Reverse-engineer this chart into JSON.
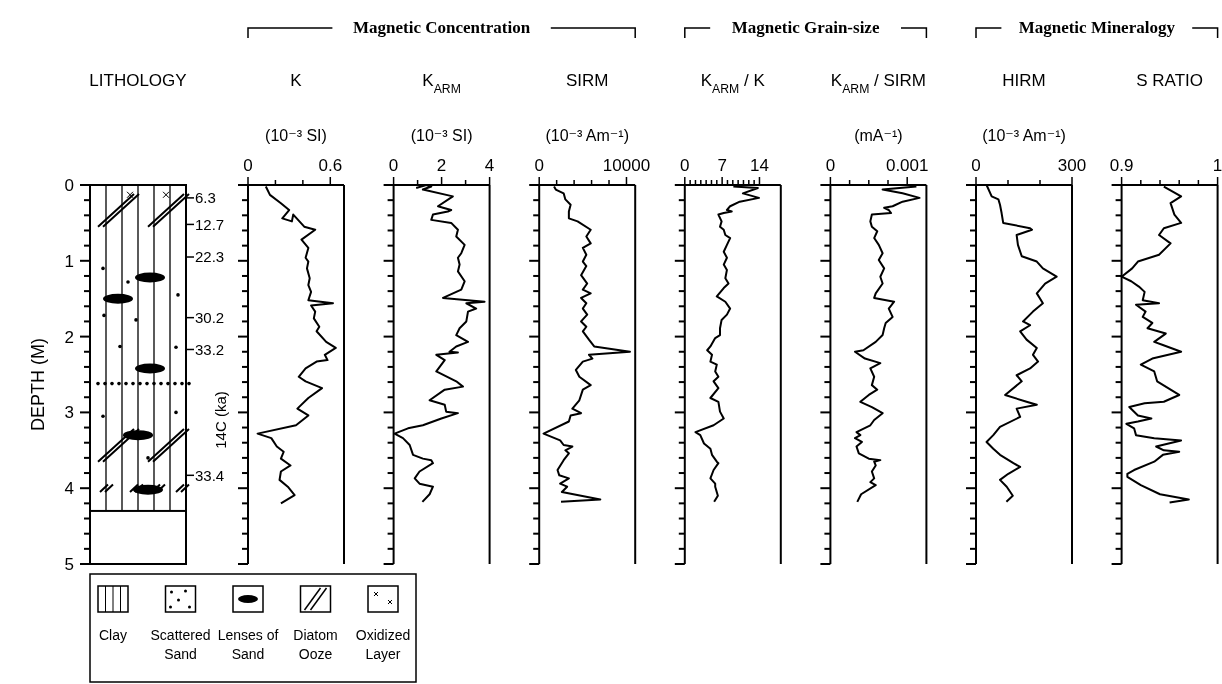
{
  "chart_data": [
    {
      "type": "bar",
      "title": "LITHOLOGY",
      "ylabel": "DEPTH (M)",
      "y2label": "14C (ka)",
      "categories": [
        null
      ],
      "values": [
        4.3
      ],
      "color": "#ffffff",
      "ylim": [
        5,
        0
      ],
      "yticks": [
        0,
        {
          "value": 0.2,
          "label": null
        },
        {
          "value": 0.4,
          "label": null
        },
        {
          "value": 0.6,
          "label": null
        },
        {
          "value": 0.8,
          "label": null
        },
        1,
        {
          "value": 1.2,
          "label": null
        },
        {
          "value": 1.4,
          "label": null
        },
        {
          "value": 1.6,
          "label": null
        },
        {
          "value": 1.8,
          "label": null
        },
        2,
        {
          "value": 2.2,
          "label": null
        },
        {
          "value": 2.4,
          "label": null
        },
        {
          "value": 2.6,
          "label": null
        },
        {
          "value": 2.8,
          "label": null
        },
        3,
        {
          "value": 3.2,
          "label": null
        },
        {
          "value": 3.4,
          "label": null
        },
        {
          "value": 3.6,
          "label": null
        },
        {
          "value": 3.8,
          "label": null
        },
        4,
        {
          "value": 4.2,
          "label": null
        },
        {
          "value": 4.4,
          "label": null
        },
        {
          "value": 4.6,
          "label": null
        },
        {
          "value": 4.8,
          "label": null
        },
        5
      ],
      "annotations": [
        "6.3",
        "12.7",
        "22.3",
        "30.2",
        "33.2",
        "33.4",
        "Clay",
        "Scattered Sand",
        "Lenses of Sand",
        "Diatom Ooze",
        "Oxidized Layer"
      ]
    },
    {
      "type": "line",
      "title": "K",
      "xlabel": "(10⁻³ SI)",
      "annotations": [
        "Magnetic Concentration"
      ],
      "color": "#000000",
      "tick_labels": "x",
      "xlim": [
        0,
        0.7
      ],
      "xticks": [
        0,
        {
          "value": 0.2,
          "label": null
        },
        {
          "value": 0.4,
          "label": null
        },
        0.6
      ],
      "ylim": [
        5,
        0
      ],
      "yticks": [
        0,
        {
          "value": 0.2,
          "label": null
        },
        {
          "value": 0.4,
          "label": null
        },
        {
          "value": 0.6,
          "label": null
        },
        {
          "value": 0.8,
          "label": null
        },
        1,
        {
          "value": 1.2,
          "label": null
        },
        {
          "value": 1.4,
          "label": null
        },
        {
          "value": 1.6,
          "label": null
        },
        {
          "value": 1.8,
          "label": null
        },
        2,
        {
          "value": 2.2,
          "label": null
        },
        {
          "value": 2.4,
          "label": null
        },
        {
          "value": 2.6,
          "label": null
        },
        {
          "value": 2.8,
          "label": null
        },
        3,
        {
          "value": 3.2,
          "label": null
        },
        {
          "value": 3.4,
          "label": null
        },
        {
          "value": 3.6,
          "label": null
        },
        {
          "value": 3.8,
          "label": null
        },
        4,
        {
          "value": 4.2,
          "label": null
        },
        {
          "value": 4.4,
          "label": null
        },
        {
          "value": 4.6,
          "label": null
        },
        {
          "value": 4.8,
          "label": null
        },
        5
      ],
      "x": [
        0.13,
        0.16,
        0.24,
        0.3,
        0.25,
        0.32,
        0.33,
        0.41,
        0.49,
        0.39,
        0.44,
        0.42,
        0.44,
        0.43,
        0.45,
        0.44,
        0.46,
        0.44,
        0.62,
        0.46,
        0.49,
        0.48,
        0.52,
        0.5,
        0.57,
        0.64,
        0.56,
        0.58,
        0.5,
        0.42,
        0.37,
        0.42,
        0.54,
        0.44,
        0.36,
        0.44,
        0.35,
        0.07,
        0.17,
        0.21,
        0.26,
        0.24,
        0.31,
        0.24,
        0.23,
        0.29,
        0.34,
        0.24
      ],
      "values": [
        0.02,
        0.13,
        0.24,
        0.33,
        0.44,
        0.48,
        0.39,
        0.55,
        0.59,
        0.72,
        0.83,
        0.96,
        1.01,
        1.1,
        1.23,
        1.32,
        1.41,
        1.52,
        1.56,
        1.59,
        1.67,
        1.76,
        1.87,
        1.93,
        2.07,
        2.15,
        2.24,
        2.31,
        2.33,
        2.42,
        2.53,
        2.59,
        2.68,
        2.81,
        2.95,
        3.04,
        3.17,
        3.28,
        3.34,
        3.45,
        3.52,
        3.61,
        3.7,
        3.78,
        3.89,
        3.98,
        4.09,
        4.2
      ]
    },
    {
      "type": "line",
      "title": "K$_{ARM}$",
      "xlabel": "(10⁻³ SI)",
      "color": "#000000",
      "tick_labels": "x",
      "xlim": [
        0,
        4
      ],
      "xticks": [
        0,
        {
          "value": 1,
          "label": null
        },
        2,
        {
          "value": 3,
          "label": null
        },
        4
      ],
      "ylim": [
        5,
        0
      ],
      "yticks": [
        0,
        {
          "value": 0.2,
          "label": null
        },
        {
          "value": 0.4,
          "label": null
        },
        {
          "value": 0.6,
          "label": null
        },
        {
          "value": 0.8,
          "label": null
        },
        1,
        {
          "value": 1.2,
          "label": null
        },
        {
          "value": 1.4,
          "label": null
        },
        {
          "value": 1.6,
          "label": null
        },
        {
          "value": 1.8,
          "label": null
        },
        2,
        {
          "value": 2.2,
          "label": null
        },
        {
          "value": 2.4,
          "label": null
        },
        {
          "value": 2.6,
          "label": null
        },
        {
          "value": 2.8,
          "label": null
        },
        3,
        {
          "value": 3.2,
          "label": null
        },
        {
          "value": 3.4,
          "label": null
        },
        {
          "value": 3.6,
          "label": null
        },
        {
          "value": 3.8,
          "label": null
        },
        4,
        {
          "value": 4.2,
          "label": null
        },
        {
          "value": 4.4,
          "label": null
        },
        {
          "value": 4.6,
          "label": null
        },
        {
          "value": 4.8,
          "label": null
        },
        5
      ],
      "x": [
        0.94,
        1.36,
        1.57,
        1.22,
        2.47,
        1.85,
        2.06,
        2.4,
        2.26,
        1.64,
        1.57,
        2.4,
        2.68,
        2.61,
        2.96,
        2.82,
        2.68,
        2.75,
        2.68,
        2.96,
        2.82,
        2.06,
        3.79,
        3.03,
        3.44,
        3.1,
        3.03,
        2.75,
        2.61,
        3.1,
        2.61,
        2.33,
        2.68,
        1.78,
        2.13,
        1.99,
        1.78,
        2.61,
        2.89,
        2.13,
        1.5,
        2.13,
        2.19,
        2.68,
        1.99,
        1.22,
        0.6,
        0.04,
        0.39,
        0.67,
        0.81,
        1.22,
        1.57,
        1.64,
        1.08,
        0.88,
        1.08,
        1.64,
        1.5,
        1.2
      ],
      "values": [
        0.04,
        0,
        0.02,
        0.06,
        0.15,
        0.28,
        0.3,
        0.33,
        0.35,
        0.39,
        0.46,
        0.5,
        0.59,
        0.68,
        0.79,
        0.9,
        0.96,
        1.05,
        1.14,
        1.27,
        1.38,
        1.49,
        1.54,
        1.56,
        1.63,
        1.67,
        1.8,
        1.89,
        1.98,
        2.07,
        2.13,
        2.2,
        2.21,
        2.24,
        2.31,
        2.37,
        2.46,
        2.59,
        2.66,
        2.7,
        2.84,
        2.9,
        2.99,
        3.01,
        3.08,
        3.17,
        3.21,
        3.28,
        3.34,
        3.43,
        3.56,
        3.61,
        3.63,
        3.67,
        3.78,
        3.87,
        3.94,
        3.98,
        4.08,
        4.18
      ]
    },
    {
      "type": "line",
      "title": "SIRM",
      "xlabel": "(10⁻³ Am⁻¹)",
      "color": "#000000",
      "tick_labels": "x",
      "xlim": [
        0,
        11000
      ],
      "xticks": [
        0,
        {
          "value": 2000,
          "label": null
        },
        {
          "value": 4000,
          "label": null
        },
        {
          "value": 6000,
          "label": null
        },
        {
          "value": 8000,
          "label": null
        },
        10000
      ],
      "ylim": [
        5,
        0
      ],
      "yticks": [
        0,
        {
          "value": 0.2,
          "label": null
        },
        {
          "value": 0.4,
          "label": null
        },
        {
          "value": 0.6,
          "label": null
        },
        {
          "value": 0.8,
          "label": null
        },
        1,
        {
          "value": 1.2,
          "label": null
        },
        {
          "value": 1.4,
          "label": null
        },
        {
          "value": 1.6,
          "label": null
        },
        {
          "value": 1.8,
          "label": null
        },
        2,
        {
          "value": 2.2,
          "label": null
        },
        {
          "value": 2.4,
          "label": null
        },
        {
          "value": 2.6,
          "label": null
        },
        {
          "value": 2.8,
          "label": null
        },
        3,
        {
          "value": 3.2,
          "label": null
        },
        {
          "value": 3.4,
          "label": null
        },
        {
          "value": 3.6,
          "label": null
        },
        {
          "value": 3.8,
          "label": null
        },
        4,
        {
          "value": 4.2,
          "label": null
        },
        {
          "value": 4.4,
          "label": null
        },
        {
          "value": 4.6,
          "label": null
        },
        {
          "value": 4.8,
          "label": null
        },
        5
      ],
      "x": [
        1700,
        1900,
        2800,
        3000,
        3600,
        3400,
        3400,
        4400,
        5900,
        5400,
        5900,
        5000,
        5400,
        5000,
        5400,
        4800,
        5500,
        5000,
        5900,
        4800,
        5400,
        5000,
        5500,
        4800,
        5400,
        5000,
        5700,
        6300,
        10400,
        5700,
        6100,
        5000,
        4200,
        4600,
        5900,
        5000,
        4600,
        3800,
        4800,
        3600,
        3400,
        500,
        2400,
        2800,
        3800,
        3000,
        3400,
        2800,
        2100,
        2300,
        3400,
        2400,
        3200,
        2600,
        7000,
        2500
      ],
      "values": [
        0.02,
        0.06,
        0.11,
        0.19,
        0.26,
        0.35,
        0.44,
        0.48,
        0.59,
        0.68,
        0.77,
        0.83,
        0.92,
        1.01,
        1.07,
        1.19,
        1.3,
        1.38,
        1.43,
        1.49,
        1.56,
        1.63,
        1.71,
        1.8,
        1.87,
        1.93,
        2.04,
        2.13,
        2.2,
        2.24,
        2.29,
        2.33,
        2.44,
        2.53,
        2.64,
        2.7,
        2.84,
        2.95,
        3.01,
        3.04,
        3.12,
        3.28,
        3.37,
        3.43,
        3.45,
        3.5,
        3.54,
        3.63,
        3.76,
        3.83,
        3.87,
        3.94,
        3.98,
        4.05,
        4.15,
        4.18
      ]
    },
    {
      "type": "line",
      "title": "K$_{ARM}$ / K",
      "annotations": [
        "Magnetic Grain-size"
      ],
      "color": "#000000",
      "tick_labels": "x",
      "xlim": [
        0,
        18
      ],
      "xticks": [
        0,
        {
          "value": 1,
          "label": null
        },
        {
          "value": 2,
          "label": null
        },
        {
          "value": 3,
          "label": null
        },
        {
          "value": 4,
          "label": null
        },
        {
          "value": 5,
          "label": null
        },
        {
          "value": 6,
          "label": null
        },
        7,
        {
          "value": 8,
          "label": null
        },
        {
          "value": 9,
          "label": null
        },
        {
          "value": 10,
          "label": null
        },
        {
          "value": 11,
          "label": null
        },
        {
          "value": 12,
          "label": null
        },
        {
          "value": 13,
          "label": null
        },
        14
      ],
      "ylim": [
        5,
        0
      ],
      "yticks": [
        0,
        {
          "value": 0.2,
          "label": null
        },
        {
          "value": 0.4,
          "label": null
        },
        {
          "value": 0.6,
          "label": null
        },
        {
          "value": 0.8,
          "label": null
        },
        1,
        {
          "value": 1.2,
          "label": null
        },
        {
          "value": 1.4,
          "label": null
        },
        {
          "value": 1.6,
          "label": null
        },
        {
          "value": 1.8,
          "label": null
        },
        2,
        {
          "value": 2.2,
          "label": null
        },
        {
          "value": 2.4,
          "label": null
        },
        {
          "value": 2.6,
          "label": null
        },
        {
          "value": 2.8,
          "label": null
        },
        3,
        {
          "value": 3.2,
          "label": null
        },
        {
          "value": 3.4,
          "label": null
        },
        {
          "value": 3.6,
          "label": null
        },
        {
          "value": 3.8,
          "label": null
        },
        4,
        {
          "value": 4.2,
          "label": null
        },
        {
          "value": 4.4,
          "label": null
        },
        {
          "value": 4.6,
          "label": null
        },
        {
          "value": 4.8,
          "label": null
        },
        5
      ],
      "x": [
        9.1,
        13.7,
        10.9,
        13.9,
        10.3,
        8.5,
        7.9,
        8.8,
        7.3,
        6.3,
        6.9,
        6.6,
        7.3,
        7.6,
        8.5,
        7.9,
        7.3,
        7.9,
        7.3,
        7.9,
        7.6,
        8.2,
        7.3,
        6.0,
        7.6,
        8.5,
        7.9,
        6.9,
        6.6,
        6.6,
        5.7,
        4.8,
        4.2,
        5.1,
        4.8,
        6.0,
        5.7,
        6.3,
        5.4,
        6.3,
        4.8,
        6.3,
        6.6,
        7.3,
        5.4,
        2.0,
        2.9,
        3.6,
        4.8,
        5.1,
        6.0,
        6.3,
        5.4,
        4.8,
        5.7,
        5.7,
        6.2,
        5.5
      ],
      "values": [
        0.02,
        0.04,
        0.11,
        0.17,
        0.22,
        0.28,
        0.33,
        0.35,
        0.37,
        0.39,
        0.48,
        0.55,
        0.59,
        0.66,
        0.7,
        0.79,
        0.88,
        0.96,
        1.05,
        1.12,
        1.23,
        1.3,
        1.36,
        1.47,
        1.54,
        1.63,
        1.71,
        1.78,
        1.89,
        1.98,
        2.02,
        2.13,
        2.18,
        2.24,
        2.33,
        2.37,
        2.46,
        2.53,
        2.59,
        2.68,
        2.81,
        2.86,
        2.99,
        3.08,
        3.17,
        3.26,
        3.3,
        3.41,
        3.48,
        3.56,
        3.65,
        3.67,
        3.76,
        3.87,
        3.94,
        3.98,
        4.1,
        4.18
      ]
    },
    {
      "type": "line",
      "title": "K$_{ARM}$ / SIRM",
      "xlabel": "(mA⁻¹)",
      "color": "#000000",
      "tick_labels": "x",
      "xlim": [
        0,
        0.00125
      ],
      "xticks": [
        0,
        {
          "value": 0.00025,
          "label": null
        },
        {
          "value": 0.0005,
          "label": null
        },
        {
          "value": 0.00075,
          "label": null
        },
        0.001
      ],
      "ylim": [
        5,
        0
      ],
      "yticks": [
        0,
        {
          "value": 0.2,
          "label": null
        },
        {
          "value": 0.4,
          "label": null
        },
        {
          "value": 0.6,
          "label": null
        },
        {
          "value": 0.8,
          "label": null
        },
        1,
        {
          "value": 1.2,
          "label": null
        },
        {
          "value": 1.4,
          "label": null
        },
        {
          "value": 1.6,
          "label": null
        },
        {
          "value": 1.8,
          "label": null
        },
        2,
        {
          "value": 2.2,
          "label": null
        },
        {
          "value": 2.4,
          "label": null
        },
        {
          "value": 2.6,
          "label": null
        },
        {
          "value": 2.8,
          "label": null
        },
        3,
        {
          "value": 3.2,
          "label": null
        },
        {
          "value": 3.4,
          "label": null
        },
        {
          "value": 3.6,
          "label": null
        },
        {
          "value": 3.8,
          "label": null
        },
        4,
        {
          "value": 4.2,
          "label": null
        },
        {
          "value": 4.4,
          "label": null
        },
        {
          "value": 4.6,
          "label": null
        },
        {
          "value": 4.8,
          "label": null
        },
        5
      ],
      "x": [
        0.00112,
        0.00068,
        0.00094,
        0.00116,
        0.00094,
        0.00081,
        0.0007,
        0.00076,
        0.00079,
        0.00054,
        0.00052,
        0.00054,
        0.00061,
        0.00057,
        0.00063,
        0.00068,
        0.00063,
        0.0007,
        0.00065,
        0.00068,
        0.00059,
        0.00057,
        0.00083,
        0.00076,
        0.00081,
        0.00072,
        0.0007,
        0.00068,
        0.00059,
        0.00043,
        0.00032,
        0.00045,
        0.00065,
        0.00052,
        0.00057,
        0.00054,
        0.00061,
        0.0005,
        0.00039,
        0.00054,
        0.00061,
        0.00068,
        0.00057,
        0.00052,
        0.00034,
        0.00039,
        0.00032,
        0.00041,
        0.00034,
        0.00037,
        0.0005,
        0.00065,
        0.00057,
        0.00059,
        0.00054,
        0.00057,
        0.00052,
        0.00059,
        0.0004,
        0.00035
      ],
      "values": [
        0.02,
        0.06,
        0.11,
        0.17,
        0.22,
        0.28,
        0.3,
        0.33,
        0.37,
        0.39,
        0.48,
        0.55,
        0.61,
        0.7,
        0.79,
        0.9,
        0.99,
        1.1,
        1.21,
        1.3,
        1.43,
        1.49,
        1.54,
        1.63,
        1.74,
        1.82,
        1.89,
        1.98,
        2.07,
        2.18,
        2.2,
        2.29,
        2.35,
        2.42,
        2.53,
        2.64,
        2.7,
        2.77,
        2.86,
        2.93,
        2.97,
        3.01,
        3.1,
        3.17,
        3.26,
        3.3,
        3.34,
        3.39,
        3.45,
        3.54,
        3.61,
        3.63,
        3.65,
        3.7,
        3.78,
        3.87,
        3.92,
        3.96,
        4.08,
        4.18
      ]
    },
    {
      "type": "line",
      "title": "HIRM",
      "xlabel": "(10⁻³ Am⁻¹)",
      "annotations": [
        "Magnetic Mineralogy"
      ],
      "color": "#000000",
      "tick_labels": "x",
      "xlim": [
        0,
        300
      ],
      "xticks": [
        0,
        {
          "value": 100,
          "label": null
        },
        {
          "value": 200,
          "label": null
        },
        300
      ],
      "ylim": [
        5,
        0
      ],
      "yticks": [
        0,
        {
          "value": 0.2,
          "label": null
        },
        {
          "value": 0.4,
          "label": null
        },
        {
          "value": 0.6,
          "label": null
        },
        {
          "value": 0.8,
          "label": null
        },
        1,
        {
          "value": 1.2,
          "label": null
        },
        {
          "value": 1.4,
          "label": null
        },
        {
          "value": 1.6,
          "label": null
        },
        {
          "value": 1.8,
          "label": null
        },
        2,
        {
          "value": 2.2,
          "label": null
        },
        {
          "value": 2.4,
          "label": null
        },
        {
          "value": 2.6,
          "label": null
        },
        {
          "value": 2.8,
          "label": null
        },
        3,
        {
          "value": 3.2,
          "label": null
        },
        {
          "value": 3.4,
          "label": null
        },
        {
          "value": 3.6,
          "label": null
        },
        {
          "value": 3.8,
          "label": null
        },
        4,
        {
          "value": 4.2,
          "label": null
        },
        {
          "value": 4.4,
          "label": null
        },
        {
          "value": 4.6,
          "label": null
        },
        {
          "value": 4.8,
          "label": null
        },
        5
      ],
      "x": [
        33,
        49,
        70,
        75,
        80,
        85,
        169,
        175,
        127,
        131,
        143,
        190,
        209,
        252,
        216,
        190,
        209,
        178,
        147,
        169,
        138,
        158,
        190,
        178,
        194,
        169,
        127,
        143,
        91,
        158,
        190,
        127,
        138,
        75,
        54,
        33,
        54,
        75,
        117,
        138,
        101,
        75,
        96,
        115,
        95
      ],
      "values": [
        0,
        0.15,
        0.19,
        0.26,
        0.37,
        0.5,
        0.57,
        0.59,
        0.66,
        0.79,
        0.94,
        1.01,
        1.1,
        1.21,
        1.3,
        1.43,
        1.56,
        1.67,
        1.8,
        1.85,
        1.93,
        2.04,
        2.15,
        2.24,
        2.33,
        2.42,
        2.51,
        2.59,
        2.77,
        2.86,
        2.9,
        2.95,
        3.06,
        3.19,
        3.3,
        3.39,
        3.48,
        3.56,
        3.67,
        3.72,
        3.81,
        3.89,
        3.98,
        4.1,
        4.18
      ]
    },
    {
      "type": "line",
      "title": "S RATIO",
      "color": "#000000",
      "tick_labels": "x",
      "xlim": [
        0.9,
        1
      ],
      "xticks": [
        0.9,
        {
          "value": 0.92,
          "label": null
        },
        {
          "value": 0.94,
          "label": null
        },
        {
          "value": 0.96,
          "label": null
        },
        {
          "value": 0.98,
          "label": null
        },
        1
      ],
      "ylim": [
        5,
        0
      ],
      "yticks": [
        0,
        {
          "value": 0.2,
          "label": null
        },
        {
          "value": 0.4,
          "label": null
        },
        {
          "value": 0.6,
          "label": null
        },
        {
          "value": 0.8,
          "label": null
        },
        1,
        {
          "value": 1.2,
          "label": null
        },
        {
          "value": 1.4,
          "label": null
        },
        {
          "value": 1.6,
          "label": null
        },
        {
          "value": 1.8,
          "label": null
        },
        2,
        {
          "value": 2.2,
          "label": null
        },
        {
          "value": 2.4,
          "label": null
        },
        {
          "value": 2.6,
          "label": null
        },
        {
          "value": 2.8,
          "label": null
        },
        3,
        {
          "value": 3.2,
          "label": null
        },
        {
          "value": 3.4,
          "label": null
        },
        {
          "value": 3.6,
          "label": null
        },
        {
          "value": 3.8,
          "label": null
        },
        4,
        {
          "value": 4.2,
          "label": null
        },
        {
          "value": 4.4,
          "label": null
        },
        {
          "value": 4.6,
          "label": null
        },
        {
          "value": 4.8,
          "label": null
        },
        5
      ],
      "x": [
        0.944,
        0.962,
        0.951,
        0.955,
        0.962,
        0.944,
        0.939,
        0.951,
        0.939,
        0.917,
        0.911,
        0.9,
        0.91,
        0.918,
        0.924,
        0.922,
        0.939,
        0.915,
        0.925,
        0.922,
        0.932,
        0.927,
        0.946,
        0.934,
        0.943,
        0.962,
        0.932,
        0.92,
        0.934,
        0.937,
        0.96,
        0.944,
        0.924,
        0.908,
        0.917,
        0.931,
        0.917,
        0.905,
        0.913,
        0.915,
        0.934,
        0.962,
        0.936,
        0.944,
        0.96,
        0.943,
        0.934,
        0.913,
        0.906,
        0.906,
        0.92,
        0.94,
        0.97,
        0.95
      ],
      "values": [
        0.02,
        0.15,
        0.24,
        0.39,
        0.5,
        0.57,
        0.66,
        0.77,
        0.92,
        1.01,
        1.1,
        1.21,
        1.27,
        1.34,
        1.41,
        1.52,
        1.56,
        1.58,
        1.67,
        1.74,
        1.82,
        1.89,
        1.96,
        2.07,
        2.11,
        2.2,
        2.29,
        2.37,
        2.46,
        2.59,
        2.77,
        2.86,
        2.88,
        2.93,
        3.04,
        3.08,
        3.12,
        3.15,
        3.21,
        3.3,
        3.34,
        3.37,
        3.45,
        3.5,
        3.52,
        3.56,
        3.65,
        3.76,
        3.81,
        3.85,
        3.96,
        4.08,
        4.15,
        4.19
      ]
    }
  ]
}
